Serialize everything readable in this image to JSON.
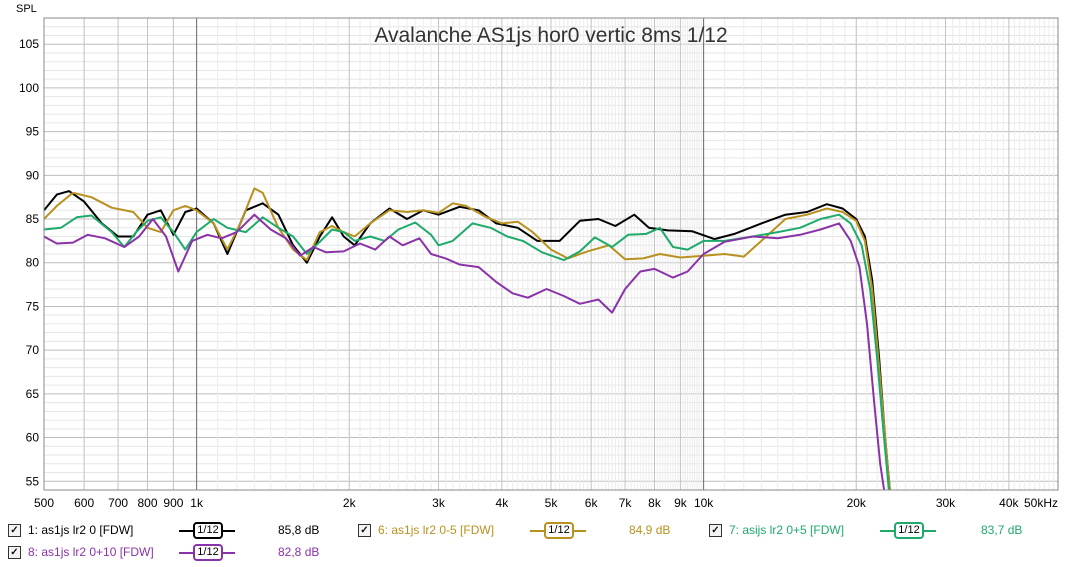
{
  "chart_data": {
    "type": "line",
    "title": "Avalanche AS1js hor0 vertic 8ms 1/12",
    "ylabel": "SPL",
    "xlabel": "",
    "x_scale": "log",
    "xlim": [
      500,
      50000
    ],
    "ylim": [
      54,
      108
    ],
    "grid": true,
    "x_ticks": [
      {
        "value": 500,
        "label": "500"
      },
      {
        "value": 600,
        "label": "600"
      },
      {
        "value": 700,
        "label": "700"
      },
      {
        "value": 800,
        "label": "800"
      },
      {
        "value": 900,
        "label": "900"
      },
      {
        "value": 1000,
        "label": "1k"
      },
      {
        "value": 2000,
        "label": "2k"
      },
      {
        "value": 3000,
        "label": "3k"
      },
      {
        "value": 4000,
        "label": "4k"
      },
      {
        "value": 5000,
        "label": "5k"
      },
      {
        "value": 6000,
        "label": "6k"
      },
      {
        "value": 7000,
        "label": "7k"
      },
      {
        "value": 8000,
        "label": "8k"
      },
      {
        "value": 9000,
        "label": "9k"
      },
      {
        "value": 10000,
        "label": "10k"
      },
      {
        "value": 20000,
        "label": "20k"
      },
      {
        "value": 30000,
        "label": "30k"
      },
      {
        "value": 40000,
        "label": "40k"
      },
      {
        "value": 50000,
        "label": "50kHz"
      }
    ],
    "y_ticks": [
      {
        "value": 105,
        "label": "105"
      },
      {
        "value": 100,
        "label": "100"
      },
      {
        "value": 95,
        "label": "95"
      },
      {
        "value": 90,
        "label": "90"
      },
      {
        "value": 85,
        "label": "85"
      },
      {
        "value": 80,
        "label": "80"
      },
      {
        "value": 75,
        "label": "75"
      },
      {
        "value": 70,
        "label": "70"
      },
      {
        "value": 65,
        "label": "65"
      },
      {
        "value": 60,
        "label": "60"
      },
      {
        "value": 55,
        "label": "55"
      }
    ],
    "series": [
      {
        "name": "1: as1js lr2 0 [FDW]",
        "color": "#000000",
        "smoothing": "1/12",
        "level": "85,8 dB",
        "points": [
          [
            500,
            86
          ],
          [
            530,
            87.8
          ],
          [
            560,
            88.2
          ],
          [
            600,
            87
          ],
          [
            650,
            84.5
          ],
          [
            700,
            83
          ],
          [
            750,
            83
          ],
          [
            800,
            85.5
          ],
          [
            850,
            86
          ],
          [
            900,
            83.2
          ],
          [
            950,
            85.8
          ],
          [
            1000,
            86.2
          ],
          [
            1080,
            84.5
          ],
          [
            1150,
            81
          ],
          [
            1250,
            86
          ],
          [
            1350,
            86.8
          ],
          [
            1450,
            85.5
          ],
          [
            1550,
            82
          ],
          [
            1650,
            80
          ],
          [
            1750,
            83
          ],
          [
            1850,
            85.2
          ],
          [
            1950,
            83
          ],
          [
            2050,
            82
          ],
          [
            2200,
            84.5
          ],
          [
            2400,
            86.2
          ],
          [
            2600,
            85
          ],
          [
            2800,
            86
          ],
          [
            3000,
            85.5
          ],
          [
            3300,
            86.4
          ],
          [
            3600,
            86
          ],
          [
            3900,
            84.5
          ],
          [
            4300,
            84
          ],
          [
            4700,
            82.5
          ],
          [
            5200,
            82.5
          ],
          [
            5700,
            84.8
          ],
          [
            6200,
            85
          ],
          [
            6700,
            84.2
          ],
          [
            7300,
            85.5
          ],
          [
            7800,
            84
          ],
          [
            8500,
            83.7
          ],
          [
            9500,
            83.6
          ],
          [
            10500,
            82.7
          ],
          [
            11500,
            83.3
          ],
          [
            13000,
            84.5
          ],
          [
            14500,
            85.5
          ],
          [
            16000,
            85.8
          ],
          [
            17500,
            86.7
          ],
          [
            18800,
            86.2
          ],
          [
            20000,
            85
          ],
          [
            20800,
            83
          ],
          [
            21500,
            78
          ],
          [
            22200,
            69
          ],
          [
            22800,
            60
          ],
          [
            23300,
            54
          ]
        ]
      },
      {
        "name": "6: as1js lr2 0-5 [FDW]",
        "color": "#b8911e",
        "smoothing": "1/12",
        "level": "84,9 dB",
        "points": [
          [
            500,
            85
          ],
          [
            530,
            86.5
          ],
          [
            570,
            88
          ],
          [
            620,
            87.5
          ],
          [
            680,
            86.3
          ],
          [
            750,
            85.8
          ],
          [
            800,
            84
          ],
          [
            850,
            83.5
          ],
          [
            900,
            86
          ],
          [
            950,
            86.5
          ],
          [
            1000,
            86
          ],
          [
            1080,
            84.5
          ],
          [
            1150,
            81.5
          ],
          [
            1220,
            84.5
          ],
          [
            1300,
            88.5
          ],
          [
            1350,
            88
          ],
          [
            1450,
            84
          ],
          [
            1550,
            81.5
          ],
          [
            1650,
            80.3
          ],
          [
            1750,
            83.5
          ],
          [
            1850,
            84.2
          ],
          [
            1950,
            83.5
          ],
          [
            2050,
            83
          ],
          [
            2200,
            84.5
          ],
          [
            2400,
            86
          ],
          [
            2600,
            85.8
          ],
          [
            2800,
            86
          ],
          [
            3000,
            85.7
          ],
          [
            3200,
            86.8
          ],
          [
            3400,
            86.5
          ],
          [
            3700,
            85.3
          ],
          [
            4000,
            84.5
          ],
          [
            4300,
            84.7
          ],
          [
            4600,
            83.5
          ],
          [
            5000,
            81.5
          ],
          [
            5400,
            80.5
          ],
          [
            5900,
            81.3
          ],
          [
            6500,
            82
          ],
          [
            7000,
            80.4
          ],
          [
            7600,
            80.5
          ],
          [
            8200,
            81
          ],
          [
            9000,
            80.6
          ],
          [
            10000,
            80.8
          ],
          [
            11000,
            81
          ],
          [
            12000,
            80.7
          ],
          [
            13000,
            82.5
          ],
          [
            14500,
            85
          ],
          [
            16000,
            85.5
          ],
          [
            17500,
            86.2
          ],
          [
            18800,
            85.8
          ],
          [
            20000,
            84.8
          ],
          [
            20800,
            82.5
          ],
          [
            21500,
            77
          ],
          [
            22200,
            68
          ],
          [
            22800,
            60
          ],
          [
            23300,
            54
          ]
        ]
      },
      {
        "name": "7: asijs lr2 0+5 [FDW]",
        "color": "#1eaa6a",
        "smoothing": "1/12",
        "level": "83,7 dB",
        "points": [
          [
            500,
            83.8
          ],
          [
            540,
            84
          ],
          [
            580,
            85.2
          ],
          [
            620,
            85.4
          ],
          [
            680,
            83.5
          ],
          [
            720,
            81.8
          ],
          [
            760,
            83.5
          ],
          [
            800,
            84.8
          ],
          [
            850,
            85.2
          ],
          [
            900,
            83.5
          ],
          [
            950,
            81.5
          ],
          [
            1000,
            83.5
          ],
          [
            1080,
            85
          ],
          [
            1150,
            84
          ],
          [
            1250,
            83.5
          ],
          [
            1350,
            85.2
          ],
          [
            1450,
            84
          ],
          [
            1550,
            83
          ],
          [
            1650,
            81
          ],
          [
            1750,
            82.4
          ],
          [
            1850,
            83.8
          ],
          [
            1950,
            83.5
          ],
          [
            2050,
            82.5
          ],
          [
            2200,
            83
          ],
          [
            2350,
            82.5
          ],
          [
            2500,
            83.8
          ],
          [
            2700,
            84.6
          ],
          [
            2900,
            83.2
          ],
          [
            3000,
            82
          ],
          [
            3200,
            82.5
          ],
          [
            3500,
            84.5
          ],
          [
            3800,
            84
          ],
          [
            4100,
            83
          ],
          [
            4400,
            82.5
          ],
          [
            4800,
            81.2
          ],
          [
            5300,
            80.3
          ],
          [
            5700,
            81.3
          ],
          [
            6100,
            82.9
          ],
          [
            6600,
            81.8
          ],
          [
            7100,
            83.2
          ],
          [
            7700,
            83.3
          ],
          [
            8200,
            84
          ],
          [
            8700,
            81.8
          ],
          [
            9300,
            81.5
          ],
          [
            10000,
            82.5
          ],
          [
            11000,
            82.5
          ],
          [
            12500,
            83
          ],
          [
            14000,
            83.5
          ],
          [
            15500,
            84
          ],
          [
            17000,
            85
          ],
          [
            18500,
            85.5
          ],
          [
            19500,
            84.5
          ],
          [
            20500,
            82
          ],
          [
            21300,
            77
          ],
          [
            22000,
            69
          ],
          [
            22600,
            61
          ],
          [
            23200,
            54
          ]
        ]
      },
      {
        "name": "8: as1js lr2 0+10 [FDW]",
        "color": "#8a32a8",
        "smoothing": "1/12",
        "level": "82,8 dB",
        "points": [
          [
            500,
            83
          ],
          [
            530,
            82.2
          ],
          [
            570,
            82.3
          ],
          [
            610,
            83.2
          ],
          [
            660,
            82.8
          ],
          [
            720,
            81.8
          ],
          [
            770,
            83
          ],
          [
            820,
            85
          ],
          [
            870,
            83
          ],
          [
            920,
            79
          ],
          [
            980,
            82.5
          ],
          [
            1050,
            83.2
          ],
          [
            1120,
            82.8
          ],
          [
            1200,
            83.5
          ],
          [
            1300,
            85.5
          ],
          [
            1400,
            83.8
          ],
          [
            1500,
            82.8
          ],
          [
            1600,
            80.8
          ],
          [
            1700,
            81.8
          ],
          [
            1800,
            81.2
          ],
          [
            1950,
            81.3
          ],
          [
            2100,
            82.2
          ],
          [
            2250,
            81.5
          ],
          [
            2400,
            83
          ],
          [
            2550,
            82
          ],
          [
            2750,
            82.8
          ],
          [
            2900,
            81
          ],
          [
            3100,
            80.5
          ],
          [
            3300,
            79.8
          ],
          [
            3600,
            79.5
          ],
          [
            3900,
            77.8
          ],
          [
            4200,
            76.5
          ],
          [
            4500,
            76
          ],
          [
            4900,
            77
          ],
          [
            5300,
            76.2
          ],
          [
            5700,
            75.3
          ],
          [
            6200,
            75.8
          ],
          [
            6600,
            74.3
          ],
          [
            7000,
            77
          ],
          [
            7500,
            79
          ],
          [
            8000,
            79.3
          ],
          [
            8700,
            78.3
          ],
          [
            9300,
            79
          ],
          [
            10000,
            81
          ],
          [
            11000,
            82.4
          ],
          [
            12500,
            83
          ],
          [
            14000,
            82.8
          ],
          [
            15500,
            83.2
          ],
          [
            17000,
            83.8
          ],
          [
            18500,
            84.5
          ],
          [
            19500,
            82.5
          ],
          [
            20300,
            79.5
          ],
          [
            21000,
            73
          ],
          [
            21700,
            64
          ],
          [
            22300,
            57
          ],
          [
            22700,
            54
          ]
        ]
      }
    ]
  }
}
